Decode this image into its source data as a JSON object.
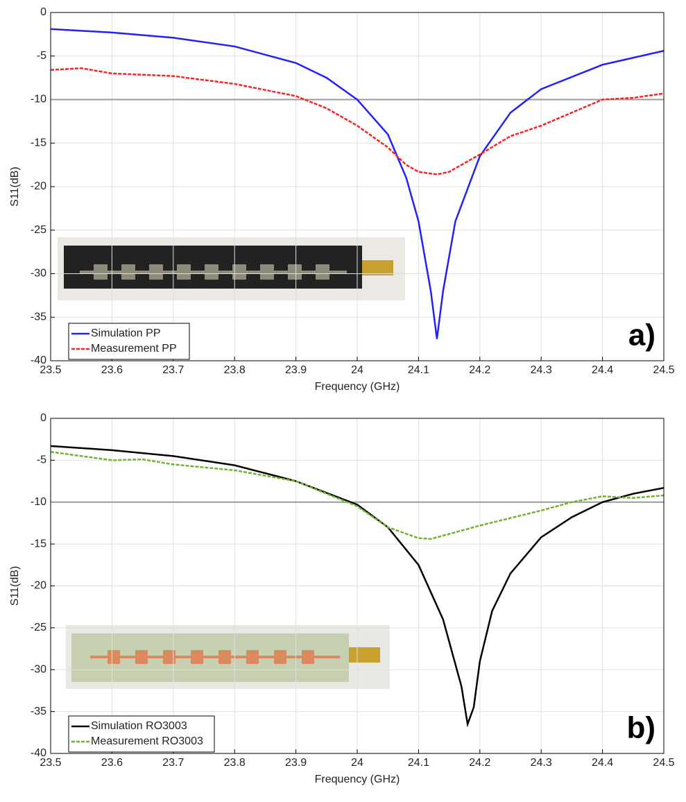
{
  "chart_data": [
    {
      "type": "line",
      "xlabel": "Frequency (GHz)",
      "ylabel": "S11(dB)",
      "annotation": "a)",
      "xlim": [
        23.5,
        24.5
      ],
      "ylim": [
        -40,
        0
      ],
      "xticks": [
        23.5,
        23.6,
        23.7,
        23.8,
        23.9,
        24,
        24.1,
        24.2,
        24.3,
        24.4,
        24.5
      ],
      "yticks": [
        0,
        -5,
        -10,
        -15,
        -20,
        -25,
        -30,
        -35,
        -40
      ],
      "grid": true,
      "reference_line": -10,
      "legend": "lower left",
      "series": [
        {
          "name": "Simulation PP",
          "color": "#1f1fff",
          "style": "solid",
          "x": [
            23.5,
            23.6,
            23.7,
            23.8,
            23.9,
            23.95,
            24.0,
            24.05,
            24.08,
            24.1,
            24.12,
            24.13,
            24.14,
            24.16,
            24.2,
            24.25,
            24.3,
            24.4,
            24.5
          ],
          "values": [
            -1.9,
            -2.3,
            -2.9,
            -3.9,
            -5.8,
            -7.5,
            -10,
            -14,
            -19,
            -24,
            -32,
            -37.5,
            -32,
            -24,
            -16.5,
            -11.5,
            -8.8,
            -6,
            -4.4
          ]
        },
        {
          "name": "Measurement PP",
          "color": "#ff1f1f",
          "style": "dashed",
          "x": [
            23.5,
            23.55,
            23.6,
            23.7,
            23.8,
            23.9,
            23.95,
            24.0,
            24.05,
            24.08,
            24.1,
            24.13,
            24.15,
            24.2,
            24.25,
            24.3,
            24.35,
            24.4,
            24.45,
            24.5
          ],
          "values": [
            -6.6,
            -6.4,
            -7,
            -7.3,
            -8.2,
            -9.6,
            -11,
            -13,
            -15.5,
            -17.5,
            -18.3,
            -18.6,
            -18.3,
            -16.3,
            -14.2,
            -13,
            -11.5,
            -10,
            -9.8,
            -9.3
          ]
        }
      ]
    },
    {
      "type": "line",
      "xlabel": "Frequency (GHz)",
      "ylabel": "S11(dB)",
      "annotation": "b)",
      "xlim": [
        23.5,
        24.5
      ],
      "ylim": [
        -40,
        0
      ],
      "xticks": [
        23.5,
        23.6,
        23.7,
        23.8,
        23.9,
        24,
        24.1,
        24.2,
        24.3,
        24.4,
        24.5
      ],
      "yticks": [
        0,
        -5,
        -10,
        -15,
        -20,
        -25,
        -30,
        -35,
        -40
      ],
      "grid": true,
      "reference_line": -10,
      "legend": "lower left",
      "series": [
        {
          "name": "Simulation RO3003",
          "color": "#000000",
          "style": "solid",
          "x": [
            23.5,
            23.6,
            23.7,
            23.8,
            23.9,
            24.0,
            24.05,
            24.1,
            24.14,
            24.17,
            24.18,
            24.19,
            24.2,
            24.22,
            24.25,
            24.3,
            24.35,
            24.4,
            24.45,
            24.5
          ],
          "values": [
            -3.3,
            -3.8,
            -4.5,
            -5.6,
            -7.5,
            -10.3,
            -13,
            -17.5,
            -24,
            -32,
            -36.5,
            -34.5,
            -29,
            -23,
            -18.5,
            -14.2,
            -11.8,
            -10,
            -9,
            -8.3
          ]
        },
        {
          "name": "Measurement RO3003",
          "color": "#6bb52e",
          "style": "dashed",
          "x": [
            23.5,
            23.6,
            23.65,
            23.7,
            23.8,
            23.9,
            24.0,
            24.05,
            24.1,
            24.12,
            24.15,
            24.2,
            24.3,
            24.35,
            24.4,
            24.45,
            24.5
          ],
          "values": [
            -4,
            -5,
            -4.9,
            -5.5,
            -6.2,
            -7.5,
            -10.5,
            -13,
            -14.3,
            -14.4,
            -13.8,
            -12.8,
            -11,
            -10,
            -9.3,
            -9.5,
            -9.2
          ]
        }
      ]
    }
  ]
}
